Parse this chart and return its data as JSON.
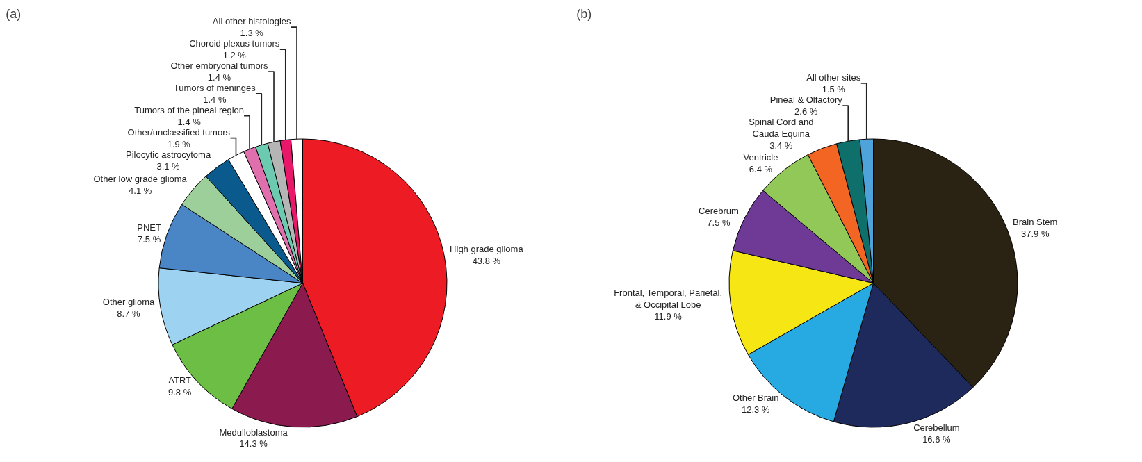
{
  "chart_data": [
    {
      "type": "pie",
      "title": "(a)",
      "legend": false,
      "categories": [
        "High grade glioma",
        "Medulloblastoma",
        "ATRT",
        "Other glioma",
        "PNET",
        "Other low grade glioma",
        "Pilocytic astrocytoma",
        "Other/unclassified tumors",
        "Tumors of the pineal region",
        "Tumors of meninges",
        "Other embryonal tumors",
        "Choroid plexus tumors",
        "All other histologies"
      ],
      "values": [
        43.8,
        14.3,
        9.8,
        8.7,
        7.5,
        4.1,
        3.1,
        1.9,
        1.4,
        1.4,
        1.4,
        1.2,
        1.3
      ],
      "value_labels": [
        "43.8 %",
        "14.3 %",
        "9.8 %",
        "8.7 %",
        "7.5 %",
        "4.1 %",
        "3.1 %",
        "1.9 %",
        "1.4 %",
        "1.4 %",
        "1.4 %",
        "1.2 %",
        "1.3 %"
      ],
      "colors": [
        "#ed1c24",
        "#8b1a4f",
        "#6dbe45",
        "#9dd3f0",
        "#4a86c5",
        "#9ccf9a",
        "#0b5a8e",
        "#ffffff",
        "#e06fae",
        "#6ccab0",
        "#b5b5b5",
        "#e8176a",
        "#ffffff"
      ]
    },
    {
      "type": "pie",
      "title": "(b)",
      "legend": false,
      "categories": [
        "Brain Stem",
        "Cerebellum",
        "Other Brain",
        "Frontal, Temporal, Parietal,\n& Occipital Lobe",
        "Cerebrum",
        "Ventricle",
        "Spinal Cord and\nCauda Equina",
        "Pineal & Olfactory",
        "All other sites"
      ],
      "values": [
        37.9,
        16.6,
        12.3,
        11.9,
        7.5,
        6.4,
        3.4,
        2.6,
        1.5
      ],
      "value_labels": [
        "37.9 %",
        "16.6 %",
        "12.3 %",
        "11.9 %",
        "7.5 %",
        "6.4 %",
        "3.4 %",
        "2.6 %",
        "1.5 %"
      ],
      "colors": [
        "#2a2213",
        "#1e2a5c",
        "#27aae1",
        "#f5e614",
        "#6e3a96",
        "#92c857",
        "#f26522",
        "#0e6f6b",
        "#4fa3db"
      ]
    }
  ]
}
